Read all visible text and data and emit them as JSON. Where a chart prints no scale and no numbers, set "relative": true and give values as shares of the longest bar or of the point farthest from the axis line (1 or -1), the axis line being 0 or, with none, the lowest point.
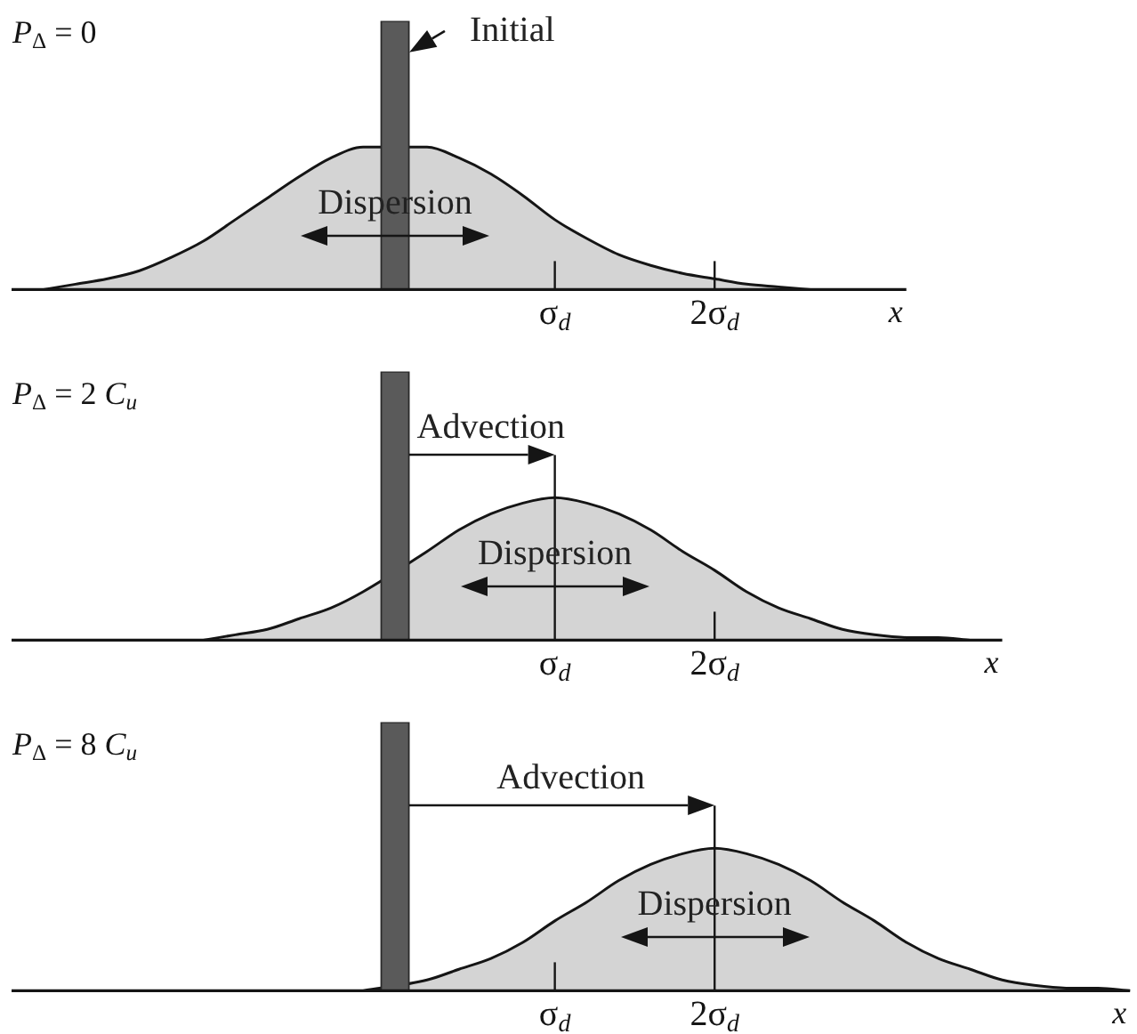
{
  "chart_data": [
    {
      "type": "area",
      "title": "P$_{Δ}$ = 0",
      "xlabel": "x",
      "relative": true,
      "categories": [
        null,
        null,
        null,
        null,
        null,
        null,
        null,
        null,
        null,
        null,
        null,
        null,
        null,
        null,
        null,
        null,
        null,
        "σ$_{d}$",
        null,
        null,
        null,
        null,
        "2σ$_{d}$",
        null,
        null,
        null,
        null,
        null,
        null
      ],
      "series": [
        {
          "color": "#d4d4d4",
          "values": [
            null,
            0,
            0.02,
            0.04,
            0.07,
            0.12,
            0.18,
            0.26,
            0.34,
            0.42,
            0.49,
            0.53,
            null,
            0.53,
            0.49,
            0.43,
            0.35,
            0.26,
            0.19,
            0.13,
            0.09,
            0.06,
            0.04,
            0.02,
            0.01,
            0,
            null,
            null,
            null
          ]
        },
        {
          "type": "bar",
          "color": "#5a5a5a",
          "values": [
            null,
            null,
            null,
            null,
            null,
            null,
            null,
            null,
            null,
            null,
            null,
            null,
            1,
            null,
            null,
            null,
            null,
            null,
            null,
            null,
            null,
            null,
            null,
            null,
            null,
            null,
            null,
            null,
            null
          ]
        }
      ],
      "annotations": [
        "Initial",
        "Dispersion"
      ]
    },
    {
      "type": "area",
      "title": "P$_{Δ}$ = 2 C$_{u}$",
      "xlabel": "x",
      "relative": true,
      "categories": [
        null,
        null,
        null,
        null,
        null,
        null,
        null,
        null,
        null,
        null,
        null,
        null,
        null,
        null,
        null,
        null,
        null,
        "σ$_{d}$",
        null,
        null,
        null,
        null,
        "2σ$_{d}$",
        null,
        null,
        null,
        null,
        null,
        null,
        null,
        null,
        null
      ],
      "series": [
        {
          "color": "#d4d4d4",
          "values": [
            null,
            null,
            null,
            null,
            null,
            null,
            0,
            0.02,
            0.04,
            0.08,
            0.12,
            0.18,
            null,
            0.33,
            0.41,
            0.47,
            0.51,
            0.53,
            0.51,
            0.47,
            0.41,
            0.33,
            0.26,
            0.18,
            0.12,
            0.08,
            0.04,
            0.02,
            0.01,
            0.01,
            0,
            null
          ]
        },
        {
          "type": "bar",
          "color": "#5a5a5a",
          "values": [
            null,
            null,
            null,
            null,
            null,
            null,
            null,
            null,
            null,
            null,
            null,
            null,
            1,
            null,
            null,
            null,
            null,
            null,
            null,
            null,
            null,
            null,
            null,
            null,
            null,
            null,
            null,
            null,
            null,
            null,
            null,
            null
          ]
        }
      ],
      "annotations": [
        "Advection",
        "Dispersion"
      ]
    },
    {
      "type": "area",
      "title": "P$_{Δ}$ = 8 C$_{u}$",
      "xlabel": "x",
      "relative": true,
      "categories": [
        null,
        null,
        null,
        null,
        null,
        null,
        null,
        null,
        null,
        null,
        null,
        null,
        null,
        null,
        null,
        null,
        null,
        "σ$_{d}$",
        null,
        null,
        null,
        null,
        "2σ$_{d}$",
        null,
        null,
        null,
        null,
        null,
        null,
        null,
        null,
        null,
        null,
        null,
        null,
        null
      ],
      "series": [
        {
          "color": "#d4d4d4",
          "values": [
            null,
            null,
            null,
            null,
            null,
            null,
            null,
            null,
            null,
            null,
            null,
            0,
            null,
            0.04,
            0.08,
            0.12,
            0.18,
            0.26,
            0.33,
            0.41,
            0.47,
            0.51,
            0.53,
            0.51,
            0.47,
            0.41,
            0.33,
            0.26,
            0.18,
            0.12,
            0.08,
            0.04,
            0.02,
            0.01,
            0.01,
            0
          ]
        },
        {
          "type": "bar",
          "color": "#5a5a5a",
          "values": [
            null,
            null,
            null,
            null,
            null,
            null,
            null,
            null,
            null,
            null,
            null,
            null,
            1,
            null,
            null,
            null,
            null,
            null,
            null,
            null,
            null,
            null,
            null,
            null,
            null,
            null,
            null,
            null,
            null,
            null,
            null,
            null,
            null,
            null,
            null,
            null
          ]
        }
      ],
      "annotations": [
        "Advection",
        "Dispersion"
      ]
    }
  ]
}
